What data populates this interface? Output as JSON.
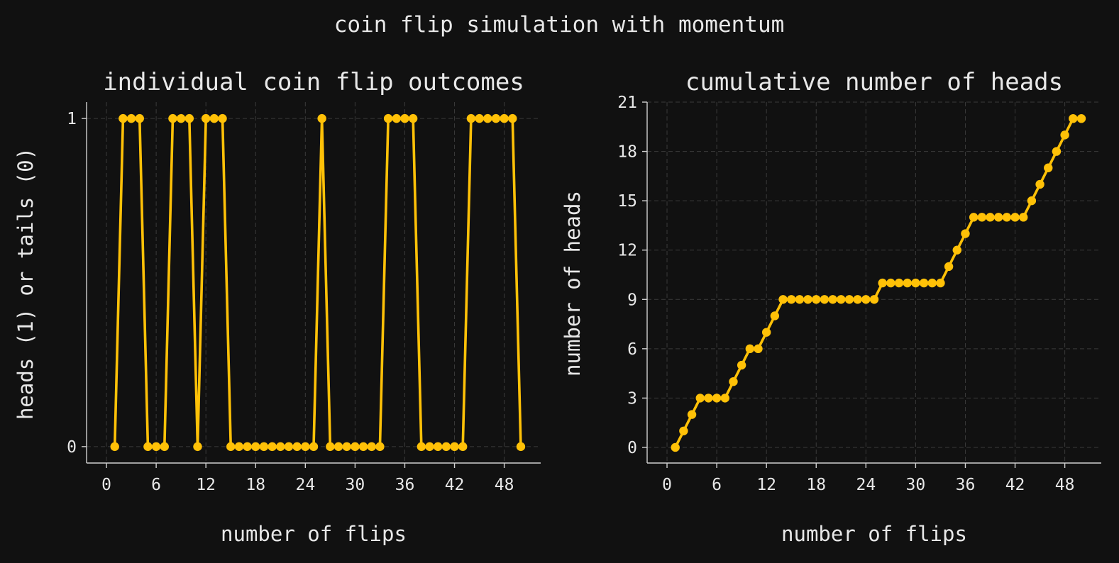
{
  "suptitle": "coin flip simulation with momentum",
  "colors": {
    "background": "#111111",
    "line": "#ffc107",
    "text": "#e8e8e8",
    "grid": "#3a3a3a"
  },
  "chart_data": [
    {
      "type": "line",
      "title": "individual coin flip outcomes",
      "xlabel": "number of flips",
      "ylabel": "heads (1) or tails (0)",
      "xlim": [
        -2.4,
        52.4
      ],
      "ylim": [
        -0.05,
        1.05
      ],
      "xticks": [
        0,
        6,
        12,
        18,
        24,
        30,
        36,
        42,
        48
      ],
      "yticks": [
        0,
        1
      ],
      "grid": true,
      "series": [
        {
          "marker": "circle",
          "x": [
            1,
            2,
            3,
            4,
            5,
            6,
            7,
            8,
            9,
            10,
            11,
            12,
            13,
            14,
            15,
            16,
            17,
            18,
            19,
            20,
            21,
            22,
            23,
            24,
            25,
            26,
            27,
            28,
            29,
            30,
            31,
            32,
            33,
            34,
            35,
            36,
            37,
            38,
            39,
            40,
            41,
            42,
            43,
            44,
            45,
            46,
            47,
            48,
            49,
            50
          ],
          "y": [
            0,
            1,
            1,
            1,
            0,
            0,
            0,
            1,
            1,
            1,
            0,
            1,
            1,
            1,
            0,
            0,
            0,
            0,
            0,
            0,
            0,
            0,
            0,
            0,
            0,
            1,
            0,
            0,
            0,
            0,
            0,
            0,
            0,
            1,
            1,
            1,
            1,
            0,
            0,
            0,
            0,
            0,
            0,
            1,
            1,
            1,
            1,
            1,
            1,
            0
          ]
        }
      ]
    },
    {
      "type": "line",
      "title": "cumulative number of heads",
      "xlabel": "number of flips",
      "ylabel": "number of heads",
      "xlim": [
        -2.4,
        52.4
      ],
      "ylim": [
        -0.95,
        21
      ],
      "xticks": [
        0,
        6,
        12,
        18,
        24,
        30,
        36,
        42,
        48
      ],
      "yticks": [
        0,
        3,
        6,
        9,
        12,
        15,
        18,
        21
      ],
      "grid": true,
      "series": [
        {
          "marker": "circle",
          "x": [
            1,
            2,
            3,
            4,
            5,
            6,
            7,
            8,
            9,
            10,
            11,
            12,
            13,
            14,
            15,
            16,
            17,
            18,
            19,
            20,
            21,
            22,
            23,
            24,
            25,
            26,
            27,
            28,
            29,
            30,
            31,
            32,
            33,
            34,
            35,
            36,
            37,
            38,
            39,
            40,
            41,
            42,
            43,
            44,
            45,
            46,
            47,
            48,
            49,
            50
          ],
          "y": [
            0,
            1,
            2,
            3,
            3,
            3,
            3,
            4,
            5,
            6,
            6,
            7,
            8,
            9,
            9,
            9,
            9,
            9,
            9,
            9,
            9,
            9,
            9,
            9,
            9,
            10,
            10,
            10,
            10,
            10,
            10,
            10,
            10,
            11,
            12,
            13,
            14,
            14,
            14,
            14,
            14,
            14,
            14,
            15,
            16,
            17,
            18,
            19,
            20,
            20
          ]
        }
      ]
    }
  ]
}
